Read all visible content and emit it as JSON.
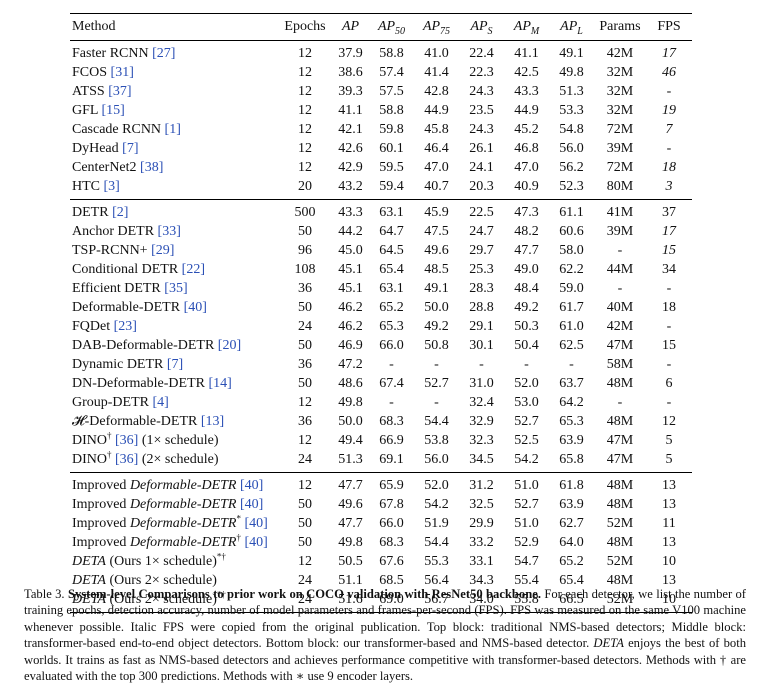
{
  "table": {
    "header": {
      "method": "Method",
      "epochs": "Epochs",
      "ap": "AP",
      "ap50_base": "AP",
      "ap50_sub": "50",
      "ap75_base": "AP",
      "ap75_sub": "75",
      "aps_base": "AP",
      "aps_sub": "S",
      "apm_base": "AP",
      "apm_sub": "M",
      "apl_base": "AP",
      "apl_sub": "L",
      "params": "Params",
      "fps": "FPS"
    },
    "block1": [
      {
        "name": "Faster RCNN",
        "cite": "[27]",
        "epochs": "12",
        "ap": "37.9",
        "ap50": "58.8",
        "ap75": "41.0",
        "aps": "22.4",
        "apm": "41.1",
        "apl": "49.1",
        "params": "42M",
        "fps": "17"
      },
      {
        "name": "FCOS",
        "cite": "[31]",
        "epochs": "12",
        "ap": "38.6",
        "ap50": "57.4",
        "ap75": "41.4",
        "aps": "22.3",
        "apm": "42.5",
        "apl": "49.8",
        "params": "32M",
        "fps": "46"
      },
      {
        "name": "ATSS",
        "cite": "[37]",
        "epochs": "12",
        "ap": "39.3",
        "ap50": "57.5",
        "ap75": "42.8",
        "aps": "24.3",
        "apm": "43.3",
        "apl": "51.3",
        "params": "32M",
        "fps": "-"
      },
      {
        "name": "GFL",
        "cite": "[15]",
        "epochs": "12",
        "ap": "41.1",
        "ap50": "58.8",
        "ap75": "44.9",
        "aps": "23.5",
        "apm": "44.9",
        "apl": "53.3",
        "params": "32M",
        "fps": "19"
      },
      {
        "name": "Cascade RCNN",
        "cite": "[1]",
        "epochs": "12",
        "ap": "42.1",
        "ap50": "59.8",
        "ap75": "45.8",
        "aps": "24.3",
        "apm": "45.2",
        "apl": "54.8",
        "params": "72M",
        "fps": "7"
      },
      {
        "name": "DyHead",
        "cite": "[7]",
        "epochs": "12",
        "ap": "42.6",
        "ap50": "60.1",
        "ap75": "46.4",
        "aps": "26.1",
        "apm": "46.8",
        "apl": "56.0",
        "params": "39M",
        "fps": "-"
      },
      {
        "name": "CenterNet2",
        "cite": "[38]",
        "epochs": "12",
        "ap": "42.9",
        "ap50": "59.5",
        "ap75": "47.0",
        "aps": "24.1",
        "apm": "47.0",
        "apl": "56.2",
        "params": "72M",
        "fps": "18"
      },
      {
        "name": "HTC",
        "cite": "[3]",
        "epochs": "20",
        "ap": "43.2",
        "ap50": "59.4",
        "ap75": "40.7",
        "aps": "20.3",
        "apm": "40.9",
        "apl": "52.3",
        "params": "80M",
        "fps": "3"
      }
    ],
    "block2": [
      {
        "name": "DETR",
        "cite": "[2]",
        "epochs": "500",
        "ap": "43.3",
        "ap50": "63.1",
        "ap75": "45.9",
        "aps": "22.5",
        "apm": "47.3",
        "apl": "61.1",
        "params": "41M",
        "fps": "37"
      },
      {
        "name": "Anchor DETR",
        "cite": "[33]",
        "epochs": "50",
        "ap": "44.2",
        "ap50": "64.7",
        "ap75": "47.5",
        "aps": "24.7",
        "apm": "48.2",
        "apl": "60.6",
        "params": "39M",
        "fps": "17"
      },
      {
        "name": "TSP-RCNN+",
        "cite": "[29]",
        "epochs": "96",
        "ap": "45.0",
        "ap50": "64.5",
        "ap75": "49.6",
        "aps": "29.7",
        "apm": "47.7",
        "apl": "58.0",
        "params": "-",
        "fps": "15"
      },
      {
        "name": "Conditional DETR",
        "cite": "[22]",
        "epochs": "108",
        "ap": "45.1",
        "ap50": "65.4",
        "ap75": "48.5",
        "aps": "25.3",
        "apm": "49.0",
        "apl": "62.2",
        "params": "44M",
        "fps": "34"
      },
      {
        "name": "Efficient DETR",
        "cite": "[35]",
        "epochs": "36",
        "ap": "45.1",
        "ap50": "63.1",
        "ap75": "49.1",
        "aps": "28.3",
        "apm": "48.4",
        "apl": "59.0",
        "params": "-",
        "fps": "-"
      },
      {
        "name": "Deformable-DETR",
        "cite": "[40]",
        "epochs": "50",
        "ap": "46.2",
        "ap50": "65.2",
        "ap75": "50.0",
        "aps": "28.8",
        "apm": "49.2",
        "apl": "61.7",
        "params": "40M",
        "fps": "18"
      },
      {
        "name": "FQDet",
        "cite": "[23]",
        "epochs": "24",
        "ap": "46.2",
        "ap50": "65.3",
        "ap75": "49.2",
        "aps": "29.1",
        "apm": "50.3",
        "apl": "61.0",
        "params": "42M",
        "fps": "-"
      },
      {
        "name": "DAB-Deformable-DETR",
        "cite": "[20]",
        "epochs": "50",
        "ap": "46.9",
        "ap50": "66.0",
        "ap75": "50.8",
        "aps": "30.1",
        "apm": "50.4",
        "apl": "62.5",
        "params": "47M",
        "fps": "15"
      },
      {
        "name": "Dynamic DETR",
        "cite": "[7]",
        "epochs": "36",
        "ap": "47.2",
        "ap50": "-",
        "ap75": "-",
        "aps": "-",
        "apm": "-",
        "apl": "-",
        "params": "58M",
        "fps": "-"
      },
      {
        "name": "DN-Deformable-DETR",
        "cite": "[14]",
        "epochs": "50",
        "ap": "48.6",
        "ap50": "67.4",
        "ap75": "52.7",
        "aps": "31.0",
        "apm": "52.0",
        "apl": "63.7",
        "params": "48M",
        "fps": "6"
      },
      {
        "name": "Group-DETR",
        "cite": "[4]",
        "epochs": "12",
        "ap": "49.8",
        "ap50": "-",
        "ap75": "-",
        "aps": "32.4",
        "apm": "53.0",
        "apl": "64.2",
        "params": "-",
        "fps": "-"
      },
      {
        "name": "𝓗-Deformable-DETR",
        "cite": "[13]",
        "epochs": "36",
        "ap": "50.0",
        "ap50": "68.3",
        "ap75": "54.4",
        "aps": "32.9",
        "apm": "52.7",
        "apl": "65.3",
        "params": "48M",
        "fps": "12"
      },
      {
        "name": "DINO",
        "sup": "†",
        "cite": "[36]",
        "suffix": "(1× schedule)",
        "epochs": "12",
        "ap": "49.4",
        "ap50": "66.9",
        "ap75": "53.8",
        "aps": "32.3",
        "apm": "52.5",
        "apl": "63.9",
        "params": "47M",
        "fps": "5"
      },
      {
        "name": "DINO",
        "sup": "†",
        "cite": "[36]",
        "suffix": "(2× schedule)",
        "epochs": "24",
        "ap": "51.3",
        "ap50": "69.1",
        "ap75": "56.0",
        "aps": "34.5",
        "apm": "54.2",
        "apl": "65.8",
        "params": "47M",
        "fps": "5"
      }
    ],
    "block3": [
      {
        "prefix": "Improved",
        "name": "Deformable-DETR",
        "cite": "[40]",
        "epochs": "12",
        "ap": "47.7",
        "ap50": "65.9",
        "ap75": "52.0",
        "aps": "31.2",
        "apm": "51.0",
        "apl": "61.8",
        "params": "48M",
        "fps": "13"
      },
      {
        "prefix": "Improved",
        "name": "Deformable-DETR",
        "cite": "[40]",
        "epochs": "50",
        "ap": "49.6",
        "ap50": "67.8",
        "ap75": "54.2",
        "aps": "32.5",
        "apm": "52.7",
        "apl": "63.9",
        "params": "48M",
        "fps": "13"
      },
      {
        "prefix": "Improved",
        "name": "Deformable-DETR",
        "sup": "*",
        "cite": "[40]",
        "epochs": "50",
        "ap": "47.7",
        "ap50": "66.0",
        "ap75": "51.9",
        "aps": "29.9",
        "apm": "51.0",
        "apl": "62.7",
        "params": "52M",
        "fps": "11"
      },
      {
        "prefix": "Improved",
        "name": "Deformable-DETR",
        "sup": "†",
        "cite": "[40]",
        "epochs": "50",
        "ap": "49.8",
        "ap50": "68.3",
        "ap75": "54.4",
        "aps": "33.2",
        "apm": "52.9",
        "apl": "64.0",
        "params": "48M",
        "fps": "13"
      },
      {
        "name": "DETA",
        "suffix": "(Ours 1× schedule)",
        "sup2": "*†",
        "epochs": "12",
        "ap": "50.5",
        "ap50": "67.6",
        "ap75": "55.3",
        "aps": "33.1",
        "apm": "54.7",
        "apl": "65.2",
        "params": "52M",
        "fps": "10"
      },
      {
        "name": "DETA",
        "suffix": "(Ours 2× schedule)",
        "epochs": "24",
        "ap": "51.1",
        "ap50": "68.5",
        "ap75": "56.4",
        "aps": "34.3",
        "apm": "55.4",
        "apl": "65.4",
        "params": "48M",
        "fps": "13"
      },
      {
        "name": "DETA",
        "suffix": "(Ours 2× schedule)",
        "sup2": "*†",
        "epochs": "24",
        "ap": "51.6",
        "ap50": "69.0",
        "ap75": "56.7",
        "aps": "34.0",
        "apm": "55.8",
        "apl": "66.5",
        "params": "52M",
        "fps": "10"
      }
    ]
  },
  "caption": {
    "label": "Table 3.",
    "title": "System-level Comparisons to prior work on COCO validation with ResNet50 backbone.",
    "body_part1": "For each detector, we list the number of training epochs, detection accuracy, number of model parameters and frames-per-second (FPS). FPS was measured on the same V100 machine whenever possible. Italic FPS were copied from the original publication. Top block: traditional NMS-based detectors; Middle block: transformer-based end-to-end object detectors. Bottom block: our transformer-based and NMS-based detector.",
    "deta": "DETA",
    "body_part2": "enjoys the best of both worlds. It trains as fast as NMS-based detectors and achieves performance competitive with transformer-based detectors. Methods with † are evaluated with the top 300 predictions. Methods with ∗ use 9 encoder layers."
  }
}
